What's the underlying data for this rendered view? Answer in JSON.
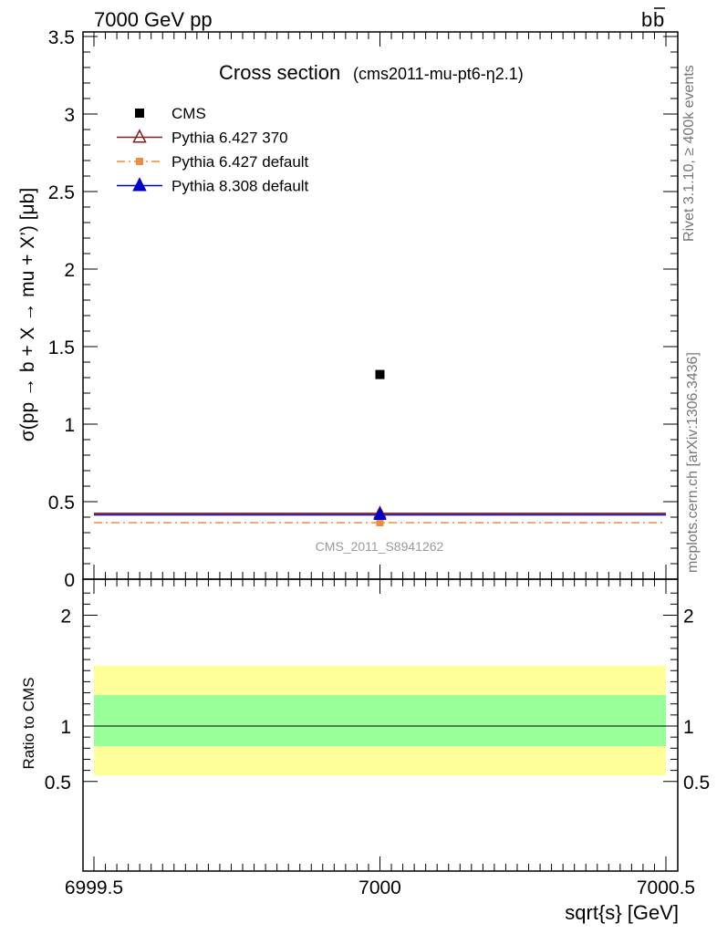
{
  "header": {
    "left": "7000 GeV pp",
    "right_base": "b",
    "right_bar": "b"
  },
  "side_labels": {
    "rivet": "Rivet 3.1.10, ≥ 400k events",
    "mcplots": "mcplots.cern.ch [arXiv:1306.3436]"
  },
  "chart_data": [
    {
      "type": "scatter",
      "title": "Cross section",
      "subtitle": "(cms2011-mu-pt6-η2.1)",
      "ylabel": "σ(pp → b + X → mu + X’) [μb]",
      "xlim": [
        6999.5,
        7000.5
      ],
      "ylim": [
        0,
        3.5
      ],
      "y_ticks": [
        "0",
        "0.5",
        "1",
        "1.5",
        "2",
        "2.5",
        "3",
        "3.5"
      ],
      "watermark": "CMS_2011_S8941262",
      "legend_position": "top-left",
      "series": [
        {
          "name": "CMS",
          "x": [
            7000
          ],
          "y": [
            1.32
          ],
          "marker": "square",
          "color": "#000000",
          "line": "none"
        },
        {
          "name": "Pythia 6.427 370",
          "x": [
            7000
          ],
          "y": [
            0.425
          ],
          "marker": "open-triangle",
          "color": "#8b1a1a",
          "line": "solid"
        },
        {
          "name": "Pythia 6.427 default",
          "x": [
            7000
          ],
          "y": [
            0.365
          ],
          "marker": "square",
          "color": "#f28c3c",
          "line": "dashdot"
        },
        {
          "name": "Pythia 8.308 default",
          "x": [
            7000
          ],
          "y": [
            0.415
          ],
          "marker": "filled-triangle",
          "color": "#0000cc",
          "line": "solid"
        }
      ]
    },
    {
      "type": "area",
      "ylabel": "Ratio to CMS",
      "xlabel": "sqrt{s} [GeV]",
      "xlim": [
        6999.5,
        7000.5
      ],
      "ylim": [
        0.35,
        2.25
      ],
      "x_ticks": [
        "6999.5",
        "7000",
        "7000.5"
      ],
      "y_ticks": [
        "0.5",
        "1",
        "2"
      ],
      "bands": [
        {
          "type": "total-uncertainty",
          "lo": 0.555,
          "hi": 1.545,
          "color": "#ffff99"
        },
        {
          "type": "stat-uncertainty",
          "lo": 0.818,
          "hi": 1.28,
          "color": "#99ff99"
        }
      ],
      "reference_line": 1
    }
  ]
}
